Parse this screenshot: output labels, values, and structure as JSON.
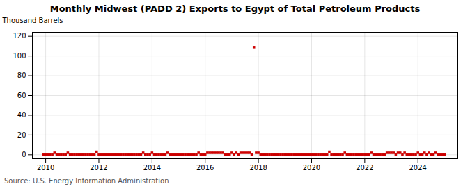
{
  "chart_data": {
    "type": "scatter",
    "title": "Monthly Midwest (PADD 2) Exports to Egypt of Total Petroleum Products",
    "ylabel": "Thousand Barrels",
    "source": "Source: U.S. Energy Information Administration",
    "color": "#cc0000",
    "marker": "square",
    "grid": true,
    "xlim": [
      2009.5,
      2025.5
    ],
    "ylim": [
      -4,
      124
    ],
    "xticks": [
      2010,
      2012,
      2014,
      2016,
      2018,
      2020,
      2022,
      2024
    ],
    "yticks": [
      0,
      20,
      40,
      60,
      80,
      100,
      120
    ],
    "x": [
      2009.917,
      2010.0,
      2010.083,
      2010.167,
      2010.25,
      2010.333,
      2010.417,
      2010.5,
      2010.583,
      2010.667,
      2010.75,
      2010.833,
      2010.917,
      2011.0,
      2011.083,
      2011.167,
      2011.25,
      2011.333,
      2011.417,
      2011.5,
      2011.583,
      2011.667,
      2011.75,
      2011.833,
      2011.917,
      2012.0,
      2012.083,
      2012.167,
      2012.25,
      2012.333,
      2012.417,
      2012.5,
      2012.583,
      2012.667,
      2012.75,
      2012.833,
      2012.917,
      2013.0,
      2013.083,
      2013.167,
      2013.25,
      2013.333,
      2013.417,
      2013.5,
      2013.583,
      2013.667,
      2013.75,
      2013.833,
      2013.917,
      2014.0,
      2014.083,
      2014.167,
      2014.25,
      2014.333,
      2014.417,
      2014.5,
      2014.583,
      2014.667,
      2014.75,
      2014.833,
      2014.917,
      2015.0,
      2015.083,
      2015.167,
      2015.25,
      2015.333,
      2015.417,
      2015.5,
      2015.583,
      2015.667,
      2015.75,
      2015.833,
      2015.917,
      2016.0,
      2016.083,
      2016.167,
      2016.25,
      2016.333,
      2016.417,
      2016.5,
      2016.583,
      2016.667,
      2016.75,
      2016.833,
      2016.917,
      2017.0,
      2017.083,
      2017.167,
      2017.25,
      2017.333,
      2017.417,
      2017.5,
      2017.583,
      2017.667,
      2017.75,
      2017.833,
      2017.917,
      2018.0,
      2018.083,
      2018.167,
      2018.25,
      2018.333,
      2018.417,
      2018.5,
      2018.583,
      2018.667,
      2018.75,
      2018.833,
      2018.917,
      2019.0,
      2019.083,
      2019.167,
      2019.25,
      2019.333,
      2019.417,
      2019.5,
      2019.583,
      2019.667,
      2019.75,
      2019.833,
      2019.917,
      2020.0,
      2020.083,
      2020.167,
      2020.25,
      2020.333,
      2020.417,
      2020.5,
      2020.583,
      2020.667,
      2020.75,
      2020.833,
      2020.917,
      2021.0,
      2021.083,
      2021.167,
      2021.25,
      2021.333,
      2021.417,
      2021.5,
      2021.583,
      2021.667,
      2021.75,
      2021.833,
      2021.917,
      2022.0,
      2022.083,
      2022.167,
      2022.25,
      2022.333,
      2022.417,
      2022.5,
      2022.583,
      2022.667,
      2022.75,
      2022.833,
      2022.917,
      2023.0,
      2023.083,
      2023.167,
      2023.25,
      2023.333,
      2023.417,
      2023.5,
      2023.583,
      2023.667,
      2023.75,
      2023.833,
      2023.917,
      2024.0,
      2024.083,
      2024.167,
      2024.25,
      2024.333,
      2024.417,
      2024.5,
      2024.583,
      2024.667,
      2024.75,
      2024.833,
      2024.917,
      2025.0
    ],
    "values": [
      0,
      0,
      0,
      0,
      0,
      2,
      0,
      0,
      0,
      0,
      0,
      2,
      0,
      0,
      0,
      0,
      0,
      0,
      0,
      0,
      0,
      0,
      0,
      0,
      3,
      0,
      0,
      0,
      0,
      0,
      0,
      0,
      0,
      0,
      0,
      0,
      0,
      0,
      0,
      0,
      0,
      0,
      0,
      0,
      0,
      2,
      0,
      0,
      0,
      2,
      0,
      0,
      0,
      0,
      0,
      0,
      2,
      0,
      0,
      0,
      0,
      0,
      0,
      0,
      0,
      0,
      0,
      0,
      0,
      0,
      2,
      0,
      0,
      0,
      2,
      2,
      2,
      2,
      2,
      2,
      2,
      2,
      0,
      0,
      0,
      2,
      0,
      2,
      0,
      2,
      2,
      2,
      2,
      2,
      0,
      109,
      2,
      2,
      0,
      0,
      0,
      0,
      0,
      0,
      0,
      0,
      0,
      0,
      0,
      0,
      0,
      0,
      0,
      0,
      0,
      0,
      0,
      0,
      0,
      0,
      0,
      0,
      0,
      0,
      0,
      0,
      0,
      0,
      0,
      3,
      0,
      0,
      0,
      0,
      0,
      0,
      2,
      0,
      0,
      0,
      0,
      0,
      0,
      0,
      0,
      0,
      0,
      0,
      2,
      0,
      0,
      0,
      0,
      0,
      0,
      2,
      2,
      2,
      2,
      0,
      2,
      2,
      0,
      2,
      0,
      0,
      0,
      0,
      0,
      2,
      0,
      0,
      2,
      0,
      2,
      0,
      0,
      2,
      0,
      0,
      0,
      0
    ]
  }
}
